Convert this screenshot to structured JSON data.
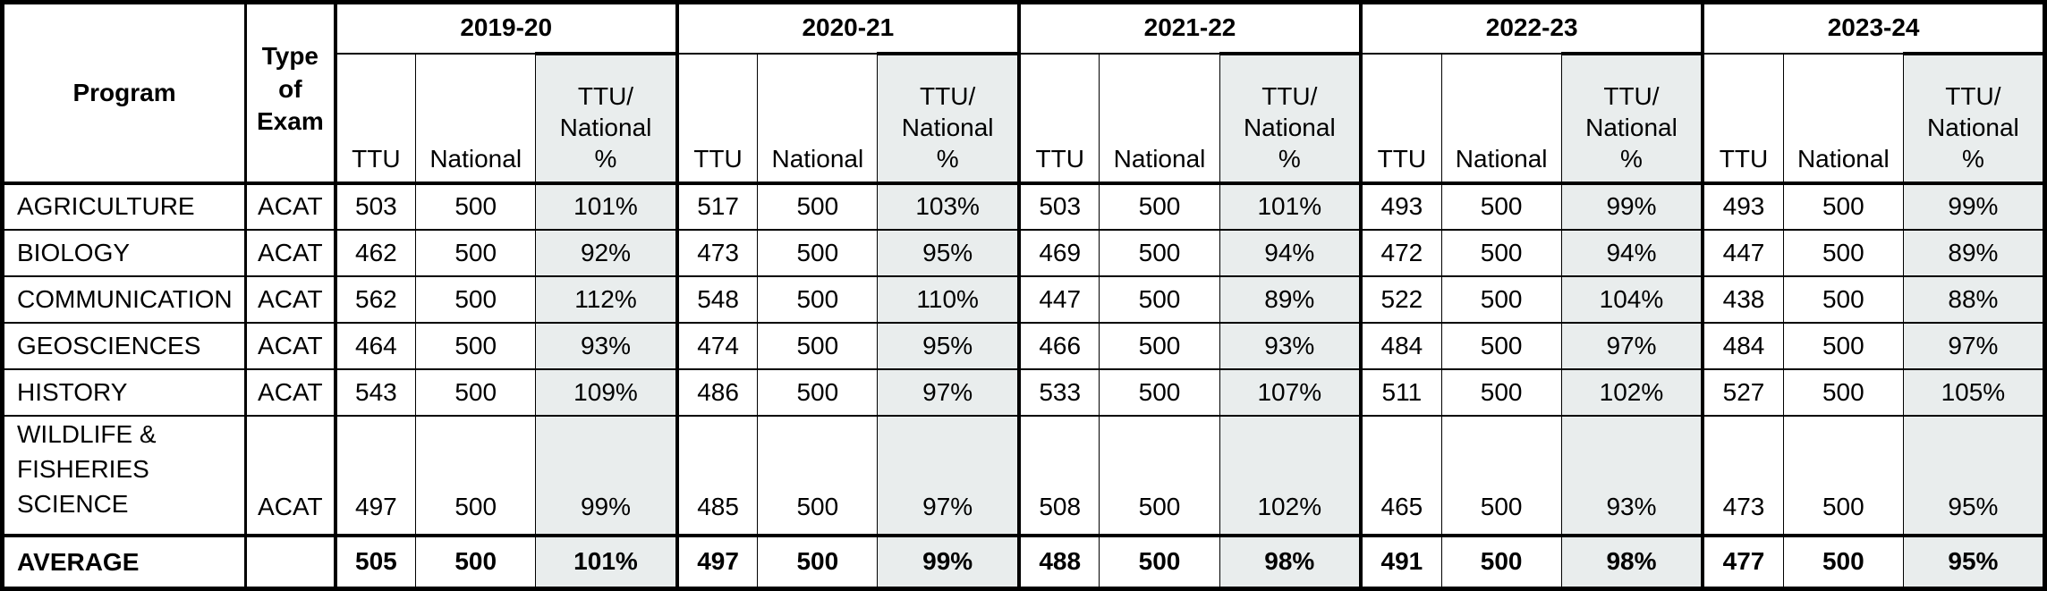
{
  "table": {
    "program_header": "Program",
    "type_header_lines": [
      "Type",
      "of",
      "Exam"
    ],
    "years": [
      "2019-20",
      "2020-21",
      "2021-22",
      "2022-23",
      "2023-24"
    ],
    "sub_headers": {
      "ttu": "TTU",
      "national": "National",
      "ratio_lines": [
        "TTU/",
        "National",
        "%"
      ]
    },
    "rows": [
      {
        "program": "AGRICULTURE",
        "program_lines": [
          "AGRICULTURE"
        ],
        "type": "ACAT",
        "values": [
          [
            503,
            500,
            "101%"
          ],
          [
            517,
            500,
            "103%"
          ],
          [
            503,
            500,
            "101%"
          ],
          [
            493,
            500,
            "99%"
          ],
          [
            493,
            500,
            "99%"
          ]
        ]
      },
      {
        "program": "BIOLOGY",
        "program_lines": [
          "BIOLOGY"
        ],
        "type": "ACAT",
        "values": [
          [
            462,
            500,
            "92%"
          ],
          [
            473,
            500,
            "95%"
          ],
          [
            469,
            500,
            "94%"
          ],
          [
            472,
            500,
            "94%"
          ],
          [
            447,
            500,
            "89%"
          ]
        ]
      },
      {
        "program": "COMMUNICATION",
        "program_lines": [
          "COMMUNICATION"
        ],
        "type": "ACAT",
        "values": [
          [
            562,
            500,
            "112%"
          ],
          [
            548,
            500,
            "110%"
          ],
          [
            447,
            500,
            "89%"
          ],
          [
            522,
            500,
            "104%"
          ],
          [
            438,
            500,
            "88%"
          ]
        ]
      },
      {
        "program": "GEOSCIENCES",
        "program_lines": [
          "GEOSCIENCES"
        ],
        "type": "ACAT",
        "values": [
          [
            464,
            500,
            "93%"
          ],
          [
            474,
            500,
            "95%"
          ],
          [
            466,
            500,
            "93%"
          ],
          [
            484,
            500,
            "97%"
          ],
          [
            484,
            500,
            "97%"
          ]
        ]
      },
      {
        "program": "HISTORY",
        "program_lines": [
          "HISTORY"
        ],
        "type": "ACAT",
        "values": [
          [
            543,
            500,
            "109%"
          ],
          [
            486,
            500,
            "97%"
          ],
          [
            533,
            500,
            "107%"
          ],
          [
            511,
            500,
            "102%"
          ],
          [
            527,
            500,
            "105%"
          ]
        ]
      },
      {
        "program": "WILDLIFE & FISHERIES SCIENCE",
        "program_lines": [
          "WILDLIFE &",
          "FISHERIES SCIENCE"
        ],
        "type": "ACAT",
        "tall": true,
        "values": [
          [
            497,
            500,
            "99%"
          ],
          [
            485,
            500,
            "97%"
          ],
          [
            508,
            500,
            "102%"
          ],
          [
            465,
            500,
            "93%"
          ],
          [
            473,
            500,
            "95%"
          ]
        ]
      }
    ],
    "average_row": {
      "label": "AVERAGE",
      "values": [
        [
          505,
          500,
          "101%"
        ],
        [
          497,
          500,
          "99%"
        ],
        [
          488,
          500,
          "98%"
        ],
        [
          491,
          500,
          "98%"
        ],
        [
          477,
          500,
          "95%"
        ]
      ]
    }
  },
  "colors": {
    "shaded_column": "#e9eded",
    "border": "#000000",
    "background": "#ffffff",
    "text": "#000000"
  }
}
